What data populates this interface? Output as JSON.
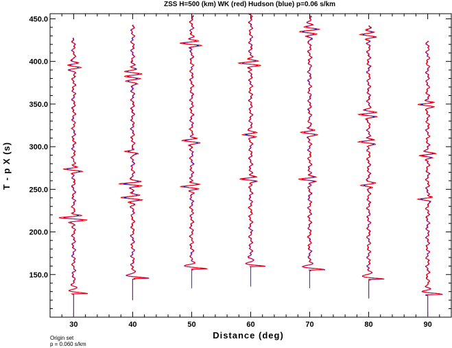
{
  "chart_data": {
    "type": "line",
    "title": "ZSS H=500 (km) WK (red) Hudson (blue) p=0.06 s/km",
    "xlabel": "Distance (deg)",
    "ylabel": "T - p X (s)",
    "xlim": [
      26,
      94
    ],
    "ylim": [
      100,
      456
    ],
    "x_ticks": [
      30,
      40,
      50,
      60,
      70,
      80,
      90
    ],
    "x_tick_labels": [
      "30",
      "40",
      "50",
      "60",
      "70",
      "80",
      "90"
    ],
    "y_ticks": [
      150,
      200,
      250,
      300,
      350,
      400,
      450
    ],
    "y_tick_labels": [
      "150.0",
      "200.0",
      "250.0",
      "300.0",
      "350.0",
      "400.0",
      "450.0"
    ],
    "grid": false,
    "series_colors": {
      "wk": "#ff0000",
      "hudson": "#0000ff"
    },
    "traces": [
      {
        "distance": 30,
        "start": 100,
        "end": 428,
        "first_arrival": 127.5,
        "amp": 5.2,
        "bursts": [
          {
            "t": 127,
            "a": 4.5,
            "w": 2.5
          },
          {
            "t": 216,
            "a": 4.0,
            "w": 5
          },
          {
            "t": 273,
            "a": 2.5,
            "w": 4
          },
          {
            "t": 395,
            "a": 2.2,
            "w": 6
          }
        ]
      },
      {
        "distance": 40,
        "start": 120,
        "end": 443,
        "first_arrival": 145.5,
        "amp": 5.2,
        "bursts": [
          {
            "t": 146,
            "a": 4.5,
            "w": 2.5
          },
          {
            "t": 240,
            "a": 3.0,
            "w": 6
          },
          {
            "t": 256,
            "a": 4.0,
            "w": 4
          },
          {
            "t": 294,
            "a": 2.5,
            "w": 3
          },
          {
            "t": 382,
            "a": 2.5,
            "w": 10
          }
        ]
      },
      {
        "distance": 50,
        "start": 134,
        "end": 454,
        "first_arrival": 156.5,
        "amp": 5.2,
        "bursts": [
          {
            "t": 157,
            "a": 4.5,
            "w": 2.5
          },
          {
            "t": 253,
            "a": 2.5,
            "w": 5
          },
          {
            "t": 307,
            "a": 2.5,
            "w": 5
          },
          {
            "t": 421,
            "a": 3.0,
            "w": 5
          }
        ]
      },
      {
        "distance": 60,
        "start": 136,
        "end": 456,
        "first_arrival": 159.5,
        "amp": 5.2,
        "bursts": [
          {
            "t": 160,
            "a": 4.5,
            "w": 2.5
          },
          {
            "t": 262,
            "a": 2.5,
            "w": 4
          },
          {
            "t": 314,
            "a": 2.5,
            "w": 4
          },
          {
            "t": 398,
            "a": 3.0,
            "w": 5
          }
        ]
      },
      {
        "distance": 70,
        "start": 134,
        "end": 454,
        "first_arrival": 155.5,
        "amp": 5.2,
        "bursts": [
          {
            "t": 156,
            "a": 4.5,
            "w": 2.5
          },
          {
            "t": 262,
            "a": 2.5,
            "w": 4
          },
          {
            "t": 317,
            "a": 2.5,
            "w": 5
          },
          {
            "t": 435,
            "a": 2.5,
            "w": 8
          }
        ]
      },
      {
        "distance": 80,
        "start": 122,
        "end": 442,
        "first_arrival": 144.5,
        "amp": 5.2,
        "bursts": [
          {
            "t": 145,
            "a": 4.5,
            "w": 2.5
          },
          {
            "t": 255,
            "a": 2.5,
            "w": 4
          },
          {
            "t": 306,
            "a": 2.5,
            "w": 4
          },
          {
            "t": 338,
            "a": 3.0,
            "w": 5
          },
          {
            "t": 432,
            "a": 2.0,
            "w": 7
          }
        ]
      },
      {
        "distance": 90,
        "start": 100,
        "end": 424,
        "first_arrival": 126.5,
        "amp": 5.2,
        "bursts": [
          {
            "t": 127,
            "a": 4.5,
            "w": 2.5
          },
          {
            "t": 239,
            "a": 2.5,
            "w": 3
          },
          {
            "t": 290,
            "a": 2.5,
            "w": 4
          },
          {
            "t": 350,
            "a": 2.8,
            "w": 4
          }
        ]
      }
    ]
  },
  "footer": {
    "line1": "Origin set",
    "line2": "p = 0.060 s/km"
  }
}
